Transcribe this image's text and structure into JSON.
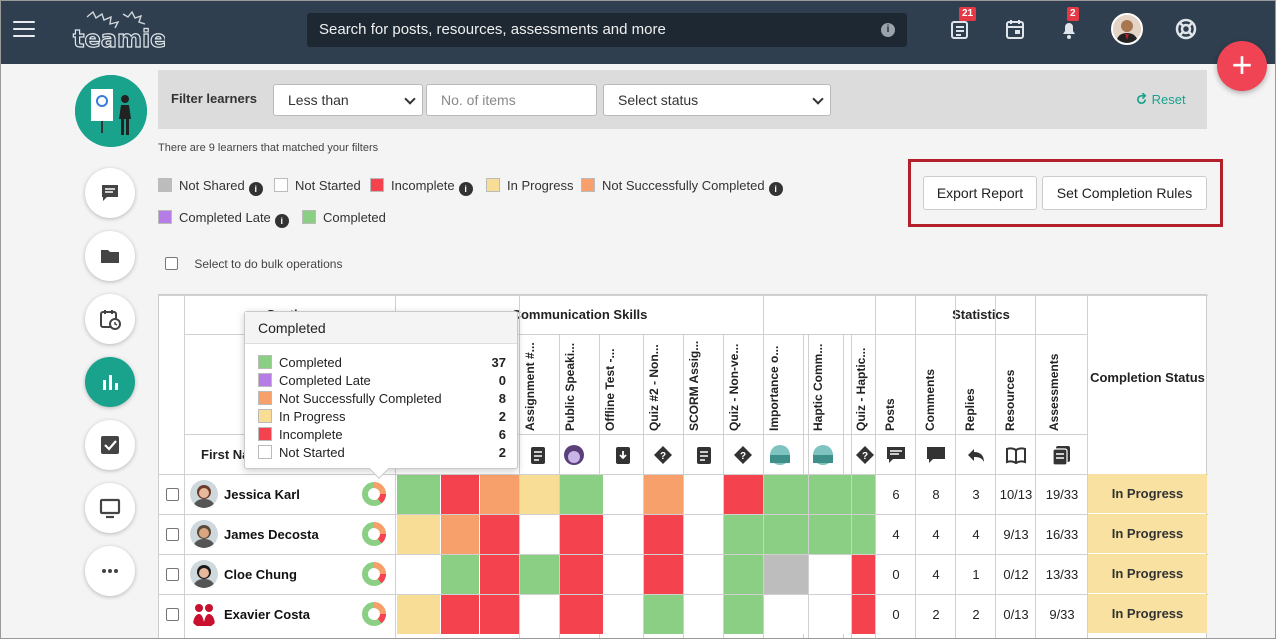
{
  "topbar": {
    "search_placeholder": "Search for posts, resources, assessments and more",
    "info_glyph": "i",
    "notifications_badge": "21",
    "alerts_badge": "2",
    "logo_text": "teamie"
  },
  "fab": {
    "label": "+"
  },
  "filter": {
    "label": "Filter learners",
    "comparator": "Less than",
    "items_placeholder": "No. of items",
    "status": "Select status",
    "reset": "Reset"
  },
  "matched_text": "There are 9 learners that matched your filters",
  "legend": [
    {
      "label": "Not Shared",
      "color": "#bdbdbd",
      "info": true
    },
    {
      "label": "Not Started",
      "color": "#ffffff",
      "info": false
    },
    {
      "label": "Incomplete",
      "color": "#f5424f",
      "info": true
    },
    {
      "label": "In Progress",
      "color": "#f7dd96",
      "info": false
    },
    {
      "label": "Not Successfully Completed",
      "color": "#f7a06b",
      "info": true
    },
    {
      "label": "Completed Late",
      "color": "#b77de6",
      "info": true
    },
    {
      "label": "Completed",
      "color": "#8bcf85",
      "info": false
    }
  ],
  "buttons": {
    "export": "Export Report",
    "rules": "Set Completion Rules"
  },
  "bulk_label": "Select to do bulk operations",
  "table": {
    "group_section": "Section",
    "group_comm": "Communication Skills",
    "group_stats": "Statistics",
    "completion_status_header": "Completion Status",
    "first_name_header": "First Name",
    "comm_columns": [
      "Assignment #...",
      "Public Speaki...",
      "Offline Test -...",
      "Quiz #2 - Non...",
      "SCORM Assig...",
      "Quiz - Non-ve..."
    ],
    "comm2_columns": [
      "Importance o...",
      "Haptic Comm...",
      "Quiz - Haptic..."
    ],
    "stat_columns": [
      "Posts",
      "Comments",
      "Replies",
      "Resources",
      "Assessments"
    ],
    "rows": [
      {
        "name": "Jessica Karl",
        "posts": "6",
        "comments": "8",
        "replies": "3",
        "resources": "10/13",
        "assessments": "19/33",
        "status": "In Progress"
      },
      {
        "name": "James Decosta",
        "posts": "4",
        "comments": "4",
        "replies": "4",
        "resources": "9/13",
        "assessments": "16/33",
        "status": "In Progress"
      },
      {
        "name": "Cloe Chung",
        "posts": "0",
        "comments": "4",
        "replies": "1",
        "resources": "0/12",
        "assessments": "13/33",
        "status": "In Progress"
      },
      {
        "name": "Exavier Costa",
        "posts": "0",
        "comments": "2",
        "replies": "2",
        "resources": "0/13",
        "assessments": "9/33",
        "status": "In Progress"
      }
    ]
  },
  "tooltip": {
    "title": "Completed",
    "items": [
      {
        "label": "Completed",
        "count": "37",
        "color": "#8bcf85"
      },
      {
        "label": "Completed Late",
        "count": "0",
        "color": "#b77de6"
      },
      {
        "label": "Not Successfully Completed",
        "count": "8",
        "color": "#f7a06b"
      },
      {
        "label": "In Progress",
        "count": "2",
        "color": "#f7dd96"
      },
      {
        "label": "Incomplete",
        "count": "6",
        "color": "#f5424f"
      },
      {
        "label": "Not Started",
        "count": "2",
        "color": "#ffffff"
      }
    ]
  }
}
